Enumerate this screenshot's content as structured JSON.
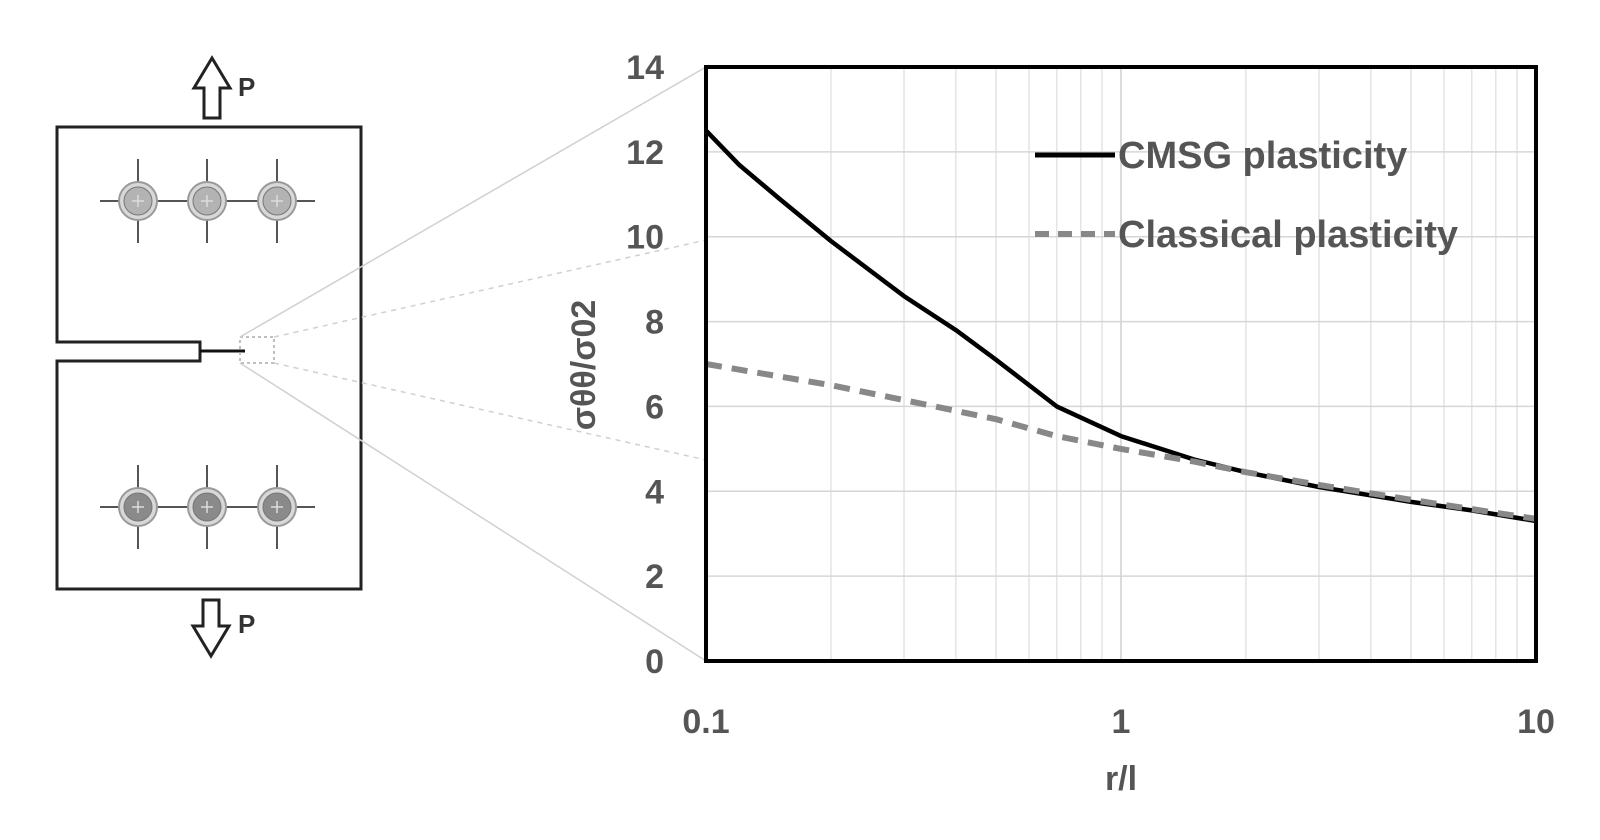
{
  "specimen": {
    "load_top_label": "P",
    "load_bottom_label": "P"
  },
  "chart_data": {
    "type": "line",
    "xscale": "log",
    "xlim": [
      0.1,
      10
    ],
    "ylim": [
      0,
      14
    ],
    "x_ticks": [
      "0.1",
      "1",
      "10"
    ],
    "y_ticks": [
      "0",
      "2",
      "4",
      "6",
      "8",
      "10",
      "12",
      "14"
    ],
    "xlabel": "r/l",
    "ylabel": "σθθ/σ02",
    "grid": true,
    "legend_position": "top-right",
    "series": [
      {
        "name": "CMSG plasticity",
        "color": "#000000",
        "dash": "solid",
        "points": [
          [
            0.1,
            12.5
          ],
          [
            0.12,
            11.7
          ],
          [
            0.15,
            10.9
          ],
          [
            0.2,
            9.9
          ],
          [
            0.3,
            8.6
          ],
          [
            0.4,
            7.8
          ],
          [
            0.5,
            7.1
          ],
          [
            0.7,
            6.0
          ],
          [
            1.0,
            5.3
          ],
          [
            1.5,
            4.75
          ],
          [
            2.0,
            4.45
          ],
          [
            3.0,
            4.1
          ],
          [
            5.0,
            3.75
          ],
          [
            7.0,
            3.55
          ],
          [
            10.0,
            3.3
          ]
        ]
      },
      {
        "name": "Classical plasticity",
        "color": "#888888",
        "dash": "dashed",
        "points": [
          [
            0.1,
            7.0
          ],
          [
            0.2,
            6.5
          ],
          [
            0.3,
            6.15
          ],
          [
            0.5,
            5.7
          ],
          [
            0.7,
            5.3
          ],
          [
            1.0,
            5.0
          ],
          [
            1.5,
            4.7
          ],
          [
            2.0,
            4.45
          ],
          [
            3.0,
            4.15
          ],
          [
            5.0,
            3.8
          ],
          [
            10.0,
            3.35
          ]
        ]
      }
    ]
  }
}
